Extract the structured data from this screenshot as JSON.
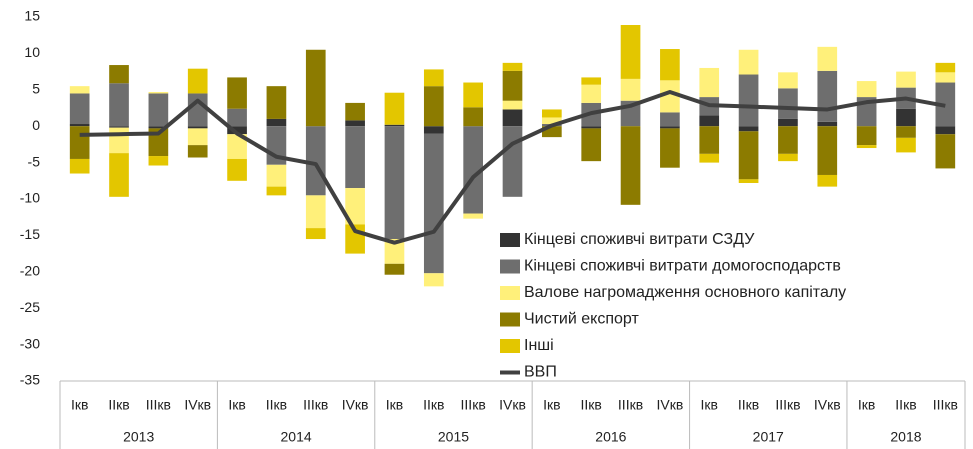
{
  "chart_data": {
    "type": "bar",
    "stacked": true,
    "categories": [
      [
        "Iкв",
        "2013"
      ],
      [
        "IIкв",
        "2013"
      ],
      [
        "IIIкв",
        "2013"
      ],
      [
        "IVкв",
        "2013"
      ],
      [
        "Iкв",
        "2014"
      ],
      [
        "IIкв",
        "2014"
      ],
      [
        "IIIкв",
        "2014"
      ],
      [
        "IVкв",
        "2014"
      ],
      [
        "Iкв",
        "2015"
      ],
      [
        "IIкв",
        "2015"
      ],
      [
        "IIIкв",
        "2015"
      ],
      [
        "IVкв",
        "2015"
      ],
      [
        "Iкв",
        "2016"
      ],
      [
        "IIкв",
        "2016"
      ],
      [
        "IIIкв",
        "2016"
      ],
      [
        "IVкв",
        "2016"
      ],
      [
        "Iкв",
        "2017"
      ],
      [
        "IIкв",
        "2017"
      ],
      [
        "IIIкв",
        "2017"
      ],
      [
        "IVкв",
        "2017"
      ],
      [
        "Iкв",
        "2018"
      ],
      [
        "IIкв",
        "2018"
      ],
      [
        "IIIкв",
        "2018"
      ]
    ],
    "series": [
      {
        "name": "Кінцеві споживчі витрати СЗДУ",
        "type": "bar",
        "color": "#333333",
        "values": [
          0.3,
          -0.2,
          -0.3,
          -0.3,
          -1.1,
          1.0,
          0,
          0.8,
          0.2,
          -1.0,
          0,
          2.3,
          0,
          -0.3,
          0,
          -0.3,
          1.5,
          -0.7,
          1.0,
          0.6,
          0,
          2.4,
          -1.1
        ]
      },
      {
        "name": "Кінцеві споживчі витрати домогосподарств",
        "type": "bar",
        "color": "#6e6e6e",
        "values": [
          4.2,
          5.9,
          4.5,
          4.5,
          2.4,
          -5.3,
          -9.5,
          -8.5,
          -15.5,
          -19.2,
          -12,
          -9.7,
          0.3,
          3.2,
          3.5,
          1.9,
          2.5,
          7.1,
          4.2,
          7.0,
          4.0,
          2.9,
          6.0
        ]
      },
      {
        "name": "Валове нагромадження основного капіталу",
        "type": "bar",
        "color": "#fff07a",
        "values": [
          1.0,
          -3.5,
          0.2,
          -2.3,
          -3.4,
          -3.0,
          -4.5,
          -5.0,
          -3.4,
          -1.8,
          -0.7,
          1.2,
          0.9,
          2.5,
          3.0,
          4.4,
          4.0,
          3.4,
          2.2,
          3.3,
          2.2,
          2.2,
          1.4
        ]
      },
      {
        "name": "Чистий експорт",
        "type": "bar",
        "color": "#8c7b00",
        "values": [
          -4.5,
          2.5,
          -3.8,
          -1.7,
          4.3,
          4.5,
          10.5,
          2.4,
          -1.5,
          5.5,
          2.6,
          4.1,
          -1.5,
          -4.5,
          -10.8,
          -5.4,
          -3.8,
          -6.6,
          -3.8,
          -6.7,
          -2.6,
          -1.6,
          -4.7
        ]
      },
      {
        "name": "Інші",
        "type": "bar",
        "color": "#e3c600",
        "values": [
          -2.0,
          -6.0,
          -1.3,
          3.4,
          -3.0,
          -1.2,
          -1.5,
          -4.0,
          4.4,
          2.3,
          3.4,
          1.1,
          1.1,
          1.0,
          7.4,
          4.3,
          -1.2,
          -0.5,
          -1.0,
          -1.6,
          -0.4,
          -2.0,
          1.3
        ]
      },
      {
        "name": "ВВП",
        "type": "line",
        "color": "#404040",
        "values": [
          -1.2,
          -1.1,
          -1.0,
          3.5,
          -1.0,
          -4.2,
          -5.2,
          -14.4,
          -16.0,
          -14.5,
          -7.0,
          -2.4,
          0.1,
          1.8,
          2.8,
          4.7,
          2.9,
          2.7,
          2.5,
          2.3,
          3.3,
          3.8,
          2.8
        ]
      }
    ],
    "ylim": [
      -35,
      15
    ],
    "yticks": [
      -35,
      -30,
      -25,
      -20,
      -15,
      -10,
      -5,
      0,
      5,
      10,
      15
    ]
  }
}
